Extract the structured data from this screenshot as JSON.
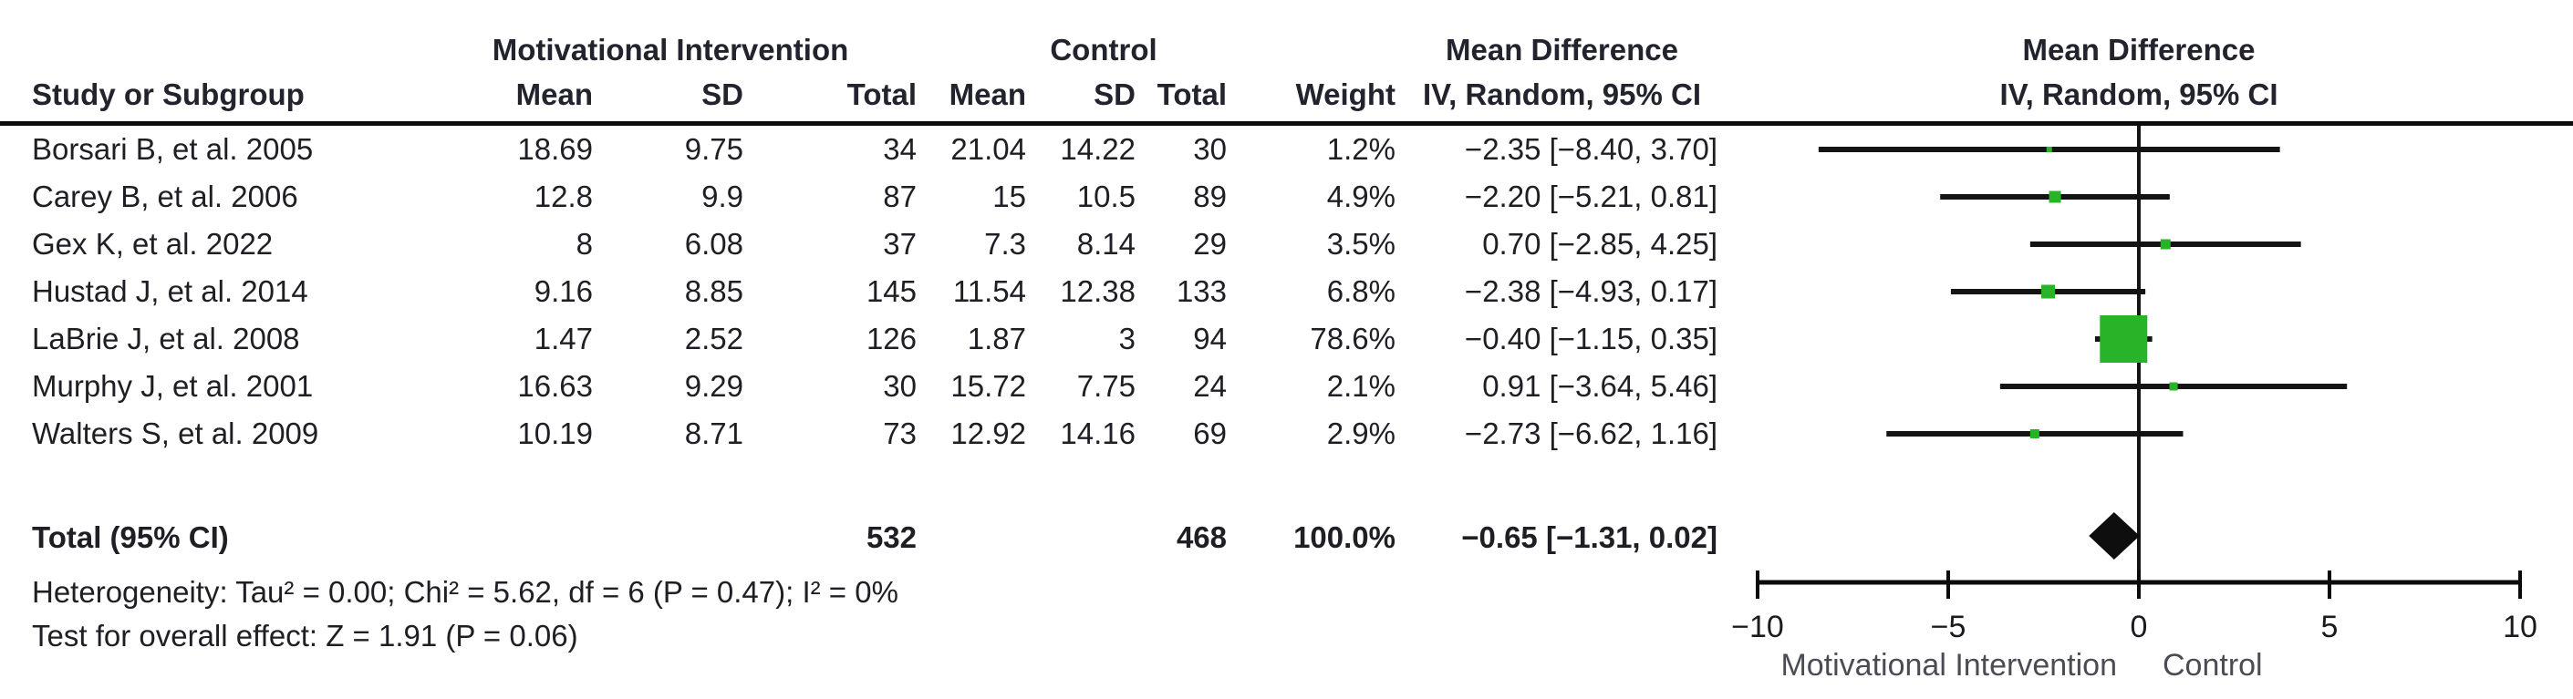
{
  "table": {
    "group1_header": "Motivational Intervention",
    "group2_header": "Control",
    "effect_header": "Mean Difference",
    "effect_subheader": "IV, Random, 95% CI",
    "plot_header": "Mean Difference",
    "plot_subheader": "IV, Random, 95% CI",
    "columns": {
      "study": "Study or Subgroup",
      "mean": "Mean",
      "sd": "SD",
      "total": "Total",
      "weight": "Weight"
    },
    "studies": [
      {
        "name": "Borsari B, et al. 2005",
        "mi_mean": "18.69",
        "mi_sd": "9.75",
        "mi_total": "34",
        "c_mean": "21.04",
        "c_sd": "14.22",
        "c_total": "30",
        "weight": "1.2%",
        "ci_text": "−2.35 [−8.40, 3.70]"
      },
      {
        "name": "Carey B, et al. 2006",
        "mi_mean": "12.8",
        "mi_sd": "9.9",
        "mi_total": "87",
        "c_mean": "15",
        "c_sd": "10.5",
        "c_total": "89",
        "weight": "4.9%",
        "ci_text": "−2.20 [−5.21, 0.81]"
      },
      {
        "name": "Gex K, et al. 2022",
        "mi_mean": "8",
        "mi_sd": "6.08",
        "mi_total": "37",
        "c_mean": "7.3",
        "c_sd": "8.14",
        "c_total": "29",
        "weight": "3.5%",
        "ci_text": "0.70 [−2.85, 4.25]"
      },
      {
        "name": "Hustad J, et al. 2014",
        "mi_mean": "9.16",
        "mi_sd": "8.85",
        "mi_total": "145",
        "c_mean": "11.54",
        "c_sd": "12.38",
        "c_total": "133",
        "weight": "6.8%",
        "ci_text": "−2.38 [−4.93, 0.17]"
      },
      {
        "name": "LaBrie J, et al. 2008",
        "mi_mean": "1.47",
        "mi_sd": "2.52",
        "mi_total": "126",
        "c_mean": "1.87",
        "c_sd": "3",
        "c_total": "94",
        "weight": "78.6%",
        "ci_text": "−0.40 [−1.15, 0.35]"
      },
      {
        "name": "Murphy J, et al. 2001",
        "mi_mean": "16.63",
        "mi_sd": "9.29",
        "mi_total": "30",
        "c_mean": "15.72",
        "c_sd": "7.75",
        "c_total": "24",
        "weight": "2.1%",
        "ci_text": "0.91 [−3.64, 5.46]"
      },
      {
        "name": "Walters S, et al. 2009",
        "mi_mean": "10.19",
        "mi_sd": "8.71",
        "mi_total": "73",
        "c_mean": "12.92",
        "c_sd": "14.16",
        "c_total": "69",
        "weight": "2.9%",
        "ci_text": "−2.73 [−6.62, 1.16]"
      }
    ],
    "total_row": {
      "label": "Total (95% CI)",
      "mi_total": "532",
      "c_total": "468",
      "weight": "100.0%",
      "ci_text": "−0.65 [−1.31, 0.02]"
    },
    "heterogeneity": "Heterogeneity: Tau² = 0.00; Chi² = 5.62, df = 6 (P = 0.47); I² = 0%",
    "overall_effect": "Test for overall effect: Z = 1.91 (P = 0.06)"
  },
  "chart_data": {
    "type": "forest",
    "title": "Mean Difference IV, Random, 95% CI",
    "x_axis": {
      "min": -10,
      "max": 10,
      "ticks": [
        -10,
        -5,
        0,
        5,
        10
      ],
      "tick_labels": [
        "−10",
        "−5",
        "0",
        "5",
        "10"
      ]
    },
    "axis_footer_left": "Motivational Intervention",
    "axis_footer_right": "Control",
    "marker_color": "#28b428",
    "line_color": "#141414",
    "diamond_color": "#0e0e0e",
    "series": [
      {
        "name": "Borsari B, et al. 2005",
        "md": -2.35,
        "ci": [
          -8.4,
          3.7
        ],
        "weight_pct": 1.2
      },
      {
        "name": "Carey B, et al. 2006",
        "md": -2.2,
        "ci": [
          -5.21,
          0.81
        ],
        "weight_pct": 4.9
      },
      {
        "name": "Gex K, et al. 2022",
        "md": 0.7,
        "ci": [
          -2.85,
          4.25
        ],
        "weight_pct": 3.5
      },
      {
        "name": "Hustad J, et al. 2014",
        "md": -2.38,
        "ci": [
          -4.93,
          0.17
        ],
        "weight_pct": 6.8
      },
      {
        "name": "LaBrie J, et al. 2008",
        "md": -0.4,
        "ci": [
          -1.15,
          0.35
        ],
        "weight_pct": 78.6
      },
      {
        "name": "Murphy J, et al. 2001",
        "md": 0.91,
        "ci": [
          -3.64,
          5.46
        ],
        "weight_pct": 2.1
      },
      {
        "name": "Walters S, et al. 2009",
        "md": -2.73,
        "ci": [
          -6.62,
          1.16
        ],
        "weight_pct": 2.9
      }
    ],
    "total": {
      "label": "Total (95% CI)",
      "md": -0.65,
      "ci": [
        -1.31,
        0.02
      ]
    }
  }
}
